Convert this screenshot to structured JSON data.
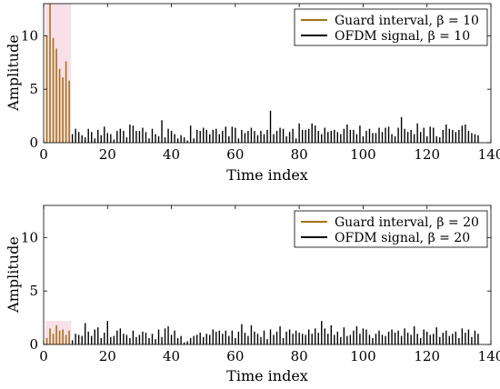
{
  "colors": {
    "guard": "#a07418",
    "ofdm": "#000000",
    "highlight": "#f2b8cc"
  },
  "chart_data": [
    {
      "type": "bar",
      "xlabel": "Time index",
      "ylabel": "Amplitude",
      "xlim": [
        0,
        140
      ],
      "ylim": [
        0,
        13
      ],
      "xticks": [
        "0",
        "20",
        "40",
        "60",
        "80",
        "100",
        "120",
        "140"
      ],
      "yticks": [
        "0",
        "5",
        "10"
      ],
      "legend_position": "top-right",
      "series": [
        {
          "name": "Guard interval, β = 10",
          "color": "#a07418",
          "x": [
            1,
            2,
            3,
            4,
            5,
            6,
            7,
            8
          ],
          "values": [
            10.0,
            13.0,
            9.8,
            8.8,
            6.9,
            6.1,
            7.6,
            5.8
          ]
        },
        {
          "name": "OFDM signal, β = 10",
          "color": "#000000",
          "x": [
            9,
            10,
            11,
            12,
            13,
            14,
            15,
            16,
            17,
            18,
            19,
            20,
            21,
            22,
            23,
            24,
            25,
            26,
            27,
            28,
            29,
            30,
            31,
            32,
            33,
            34,
            35,
            36,
            37,
            38,
            39,
            40,
            41,
            42,
            43,
            44,
            45,
            46,
            47,
            48,
            49,
            50,
            51,
            52,
            53,
            54,
            55,
            56,
            57,
            58,
            59,
            60,
            61,
            62,
            63,
            64,
            65,
            66,
            67,
            68,
            69,
            70,
            71,
            72,
            73,
            74,
            75,
            76,
            77,
            78,
            79,
            80,
            81,
            82,
            83,
            84,
            85,
            86,
            87,
            88,
            89,
            90,
            91,
            92,
            93,
            94,
            95,
            96,
            97,
            98,
            99,
            100,
            101,
            102,
            103,
            104,
            105,
            106,
            107,
            108,
            109,
            110,
            111,
            112,
            113,
            114,
            115,
            116,
            117,
            118,
            119,
            120,
            121,
            122,
            123,
            124,
            125,
            126,
            127,
            128,
            129,
            130,
            131,
            132,
            133,
            134,
            135,
            136
          ],
          "values": [
            0.8,
            1.3,
            1.0,
            0.7,
            0.5,
            1.3,
            1.0,
            0.4,
            1.2,
            0.7,
            1.5,
            0.9,
            0.8,
            0.3,
            1.1,
            1.3,
            1.1,
            0.5,
            1.7,
            1.6,
            1.1,
            1.1,
            1.4,
            1.0,
            0.4,
            1.3,
            0.8,
            0.6,
            2.1,
            0.5,
            1.3,
            1.1,
            0.8,
            0.4,
            0.7,
            0.5,
            0.2,
            1.6,
            0.4,
            1.2,
            1.1,
            1.4,
            1.2,
            0.8,
            1.2,
            1.3,
            0.8,
            1.1,
            1.5,
            0.6,
            1.5,
            1.4,
            0.4,
            1.2,
            0.9,
            1.1,
            1.4,
            1.1,
            0.7,
            1.1,
            0.8,
            1.2,
            3.0,
            0.8,
            1.1,
            1.4,
            1.3,
            0.6,
            1.0,
            1.3,
            0.4,
            1.8,
            1.2,
            1.2,
            1.3,
            1.8,
            1.6,
            1.1,
            0.8,
            1.4,
            1.0,
            1.1,
            1.2,
            1.0,
            0.8,
            1.3,
            1.7,
            1.2,
            1.2,
            0.8,
            1.6,
            0.6,
            1.1,
            1.3,
            0.9,
            0.9,
            1.4,
            1.0,
            1.4,
            1.5,
            0.8,
            0.6,
            1.4,
            2.4,
            1.3,
            1.0,
            1.2,
            0.8,
            1.8,
            1.0,
            1.4,
            0.6,
            1.5,
            1.4,
            0.6,
            0.5,
            1.2,
            1.7,
            1.3,
            1.2,
            1.0,
            1.2,
            1.6,
            1.7,
            1.1,
            0.9,
            0.8,
            0.7
          ]
        }
      ]
    },
    {
      "type": "bar",
      "xlabel": "Time index",
      "ylabel": "Amplitude",
      "xlim": [
        0,
        140
      ],
      "ylim": [
        0,
        13
      ],
      "xticks": [
        "0",
        "20",
        "40",
        "60",
        "80",
        "100",
        "120",
        "140"
      ],
      "yticks": [
        "0",
        "5",
        "10"
      ],
      "legend_position": "top-right",
      "series": [
        {
          "name": "Guard interval, β = 20",
          "color": "#a07418",
          "x": [
            1,
            2,
            3,
            4,
            5,
            6,
            7,
            8
          ],
          "values": [
            0.6,
            1.5,
            1.0,
            1.8,
            1.3,
            1.4,
            0.9,
            1.3
          ]
        },
        {
          "name": "OFDM signal, β = 20",
          "color": "#000000",
          "x": [
            9,
            10,
            11,
            12,
            13,
            14,
            15,
            16,
            17,
            18,
            19,
            20,
            21,
            22,
            23,
            24,
            25,
            26,
            27,
            28,
            29,
            30,
            31,
            32,
            33,
            34,
            35,
            36,
            37,
            38,
            39,
            40,
            41,
            42,
            43,
            44,
            45,
            46,
            47,
            48,
            49,
            50,
            51,
            52,
            53,
            54,
            55,
            56,
            57,
            58,
            59,
            60,
            61,
            62,
            63,
            64,
            65,
            66,
            67,
            68,
            69,
            70,
            71,
            72,
            73,
            74,
            75,
            76,
            77,
            78,
            79,
            80,
            81,
            82,
            83,
            84,
            85,
            86,
            87,
            88,
            89,
            90,
            91,
            92,
            93,
            94,
            95,
            96,
            97,
            98,
            99,
            100,
            101,
            102,
            103,
            104,
            105,
            106,
            107,
            108,
            109,
            110,
            111,
            112,
            113,
            114,
            115,
            116,
            117,
            118,
            119,
            120,
            121,
            122,
            123,
            124,
            125,
            126,
            127,
            128,
            129,
            130,
            131,
            132,
            133,
            134,
            135,
            136
          ],
          "values": [
            0.4,
            1.0,
            0.9,
            0.8,
            2.0,
            1.2,
            0.8,
            1.4,
            1.6,
            0.6,
            1.1,
            2.2,
            0.7,
            0.8,
            1.3,
            1.5,
            1.0,
            0.9,
            0.6,
            1.3,
            0.7,
            0.9,
            1.2,
            1.1,
            0.6,
            1.0,
            0.5,
            1.4,
            0.7,
            1.5,
            1.7,
            0.9,
            1.3,
            0.6,
            0.8,
            0.2,
            0.3,
            0.6,
            0.8,
            0.9,
            1.1,
            0.7,
            1.0,
            0.9,
            1.4,
            1.2,
            1.3,
            1.0,
            1.3,
            0.8,
            1.3,
            0.6,
            1.2,
            1.9,
            1.1,
            0.8,
            1.8,
            1.2,
            1.0,
            0.7,
            1.3,
            0.5,
            1.4,
            0.9,
            1.2,
            1.7,
            0.6,
            1.2,
            1.4,
            1.0,
            1.3,
            1.1,
            1.0,
            0.9,
            1.4,
            1.0,
            1.5,
            1.1,
            2.2,
            1.5,
            1.0,
            1.8,
            0.9,
            1.2,
            0.7,
            1.6,
            0.8,
            0.9,
            1.3,
            1.7,
            1.0,
            1.5,
            1.4,
            0.9,
            0.6,
            1.0,
            1.3,
            0.9,
            0.8,
            1.2,
            1.4,
            1.1,
            1.3,
            0.8,
            1.5,
            1.1,
            0.9,
            1.7,
            1.0,
            0.6,
            1.4,
            1.2,
            0.9,
            1.0,
            1.6,
            0.7,
            1.1,
            1.3,
            0.8,
            1.0,
            1.2,
            0.6,
            1.5,
            1.1,
            1.4,
            0.7,
            1.3,
            1.0
          ]
        }
      ]
    }
  ]
}
